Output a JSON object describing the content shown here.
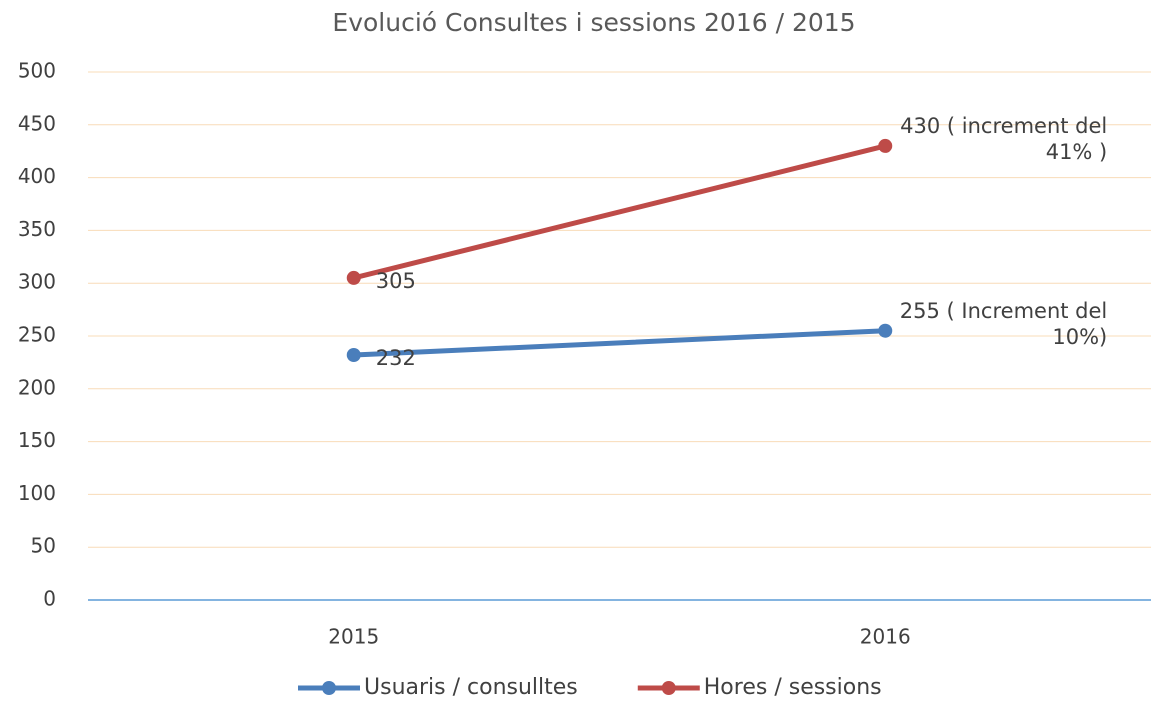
{
  "chart_data": {
    "type": "line",
    "title": "Evolució Consultes i sessions 2016 / 2015",
    "categories": [
      "2015",
      "2016"
    ],
    "series": [
      {
        "name": "Usuaris / consulltes",
        "color": "#4a7ebb",
        "values": [
          232,
          255
        ],
        "value_labels": [
          "232",
          "255 ( Increment del 10%)"
        ]
      },
      {
        "name": "Hores / sessions",
        "color": "#be4b48",
        "values": [
          305,
          430
        ],
        "value_labels": [
          "305",
          "430 ( increment del 41% )"
        ]
      }
    ],
    "ylim": [
      0,
      500
    ],
    "yticks": [
      0,
      50,
      100,
      150,
      200,
      250,
      300,
      350,
      400,
      450,
      500
    ],
    "grid": true,
    "legend": "bottom"
  }
}
